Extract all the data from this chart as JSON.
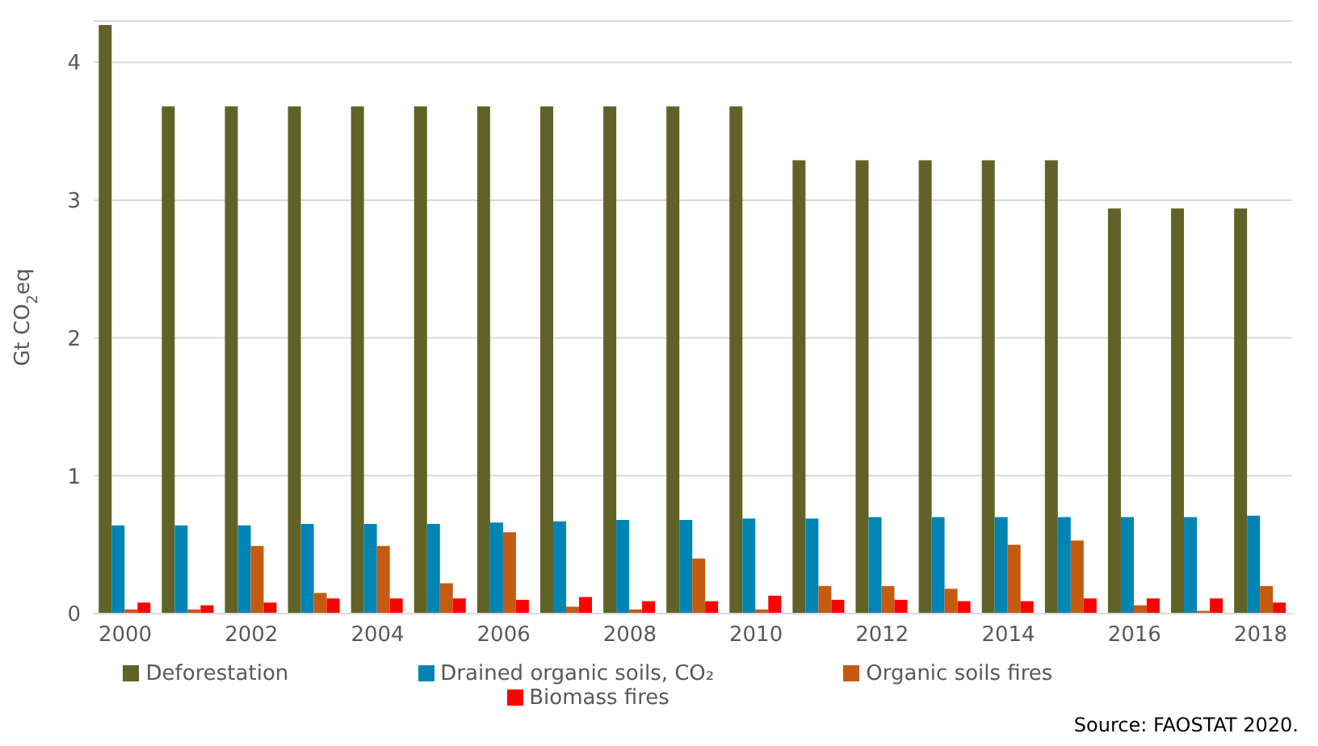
{
  "chart_data": {
    "type": "bar",
    "ylabel": "Gt CO$_{2}$eq",
    "categories": [
      "2000",
      null,
      "2002",
      null,
      "2004",
      null,
      "2006",
      null,
      "2008",
      null,
      "2010",
      null,
      "2012",
      null,
      "2014",
      null,
      "2016",
      null,
      "2018"
    ],
    "series": [
      {
        "name": "Deforestation",
        "color": "#616228",
        "values": [
          4.27,
          3.68,
          3.68,
          3.68,
          3.68,
          3.68,
          3.68,
          3.68,
          3.68,
          3.68,
          3.68,
          3.29,
          3.29,
          3.29,
          3.29,
          3.29,
          2.94,
          2.94,
          2.94
        ]
      },
      {
        "name": "Drained organic soils, CO₂",
        "color": "#0084b4",
        "values": [
          0.64,
          0.64,
          0.64,
          0.65,
          0.65,
          0.65,
          0.66,
          0.67,
          0.68,
          0.68,
          0.69,
          0.69,
          0.7,
          0.7,
          0.7,
          0.7,
          0.7,
          0.7,
          0.71
        ]
      },
      {
        "name": "Organic soils fires",
        "color": "#c55a11",
        "values": [
          0.03,
          0.03,
          0.49,
          0.15,
          0.49,
          0.22,
          0.59,
          0.05,
          0.03,
          0.4,
          0.03,
          0.2,
          0.2,
          0.18,
          0.5,
          0.53,
          0.06,
          0.02,
          0.2
        ]
      },
      {
        "name": "Biomass fires",
        "color": "#ff0000",
        "values": [
          0.08,
          0.06,
          0.08,
          0.11,
          0.11,
          0.11,
          0.1,
          0.12,
          0.09,
          0.09,
          0.13,
          0.1,
          0.1,
          0.09,
          0.09,
          0.11,
          0.11,
          0.11,
          0.08
        ]
      }
    ],
    "ylim": [
      0,
      4.3
    ],
    "yticks": [
      0,
      1,
      2,
      3,
      4
    ],
    "grid": "y",
    "legend": "bottom",
    "annotations": [
      "Source: FAOSTAT 2020."
    ]
  }
}
